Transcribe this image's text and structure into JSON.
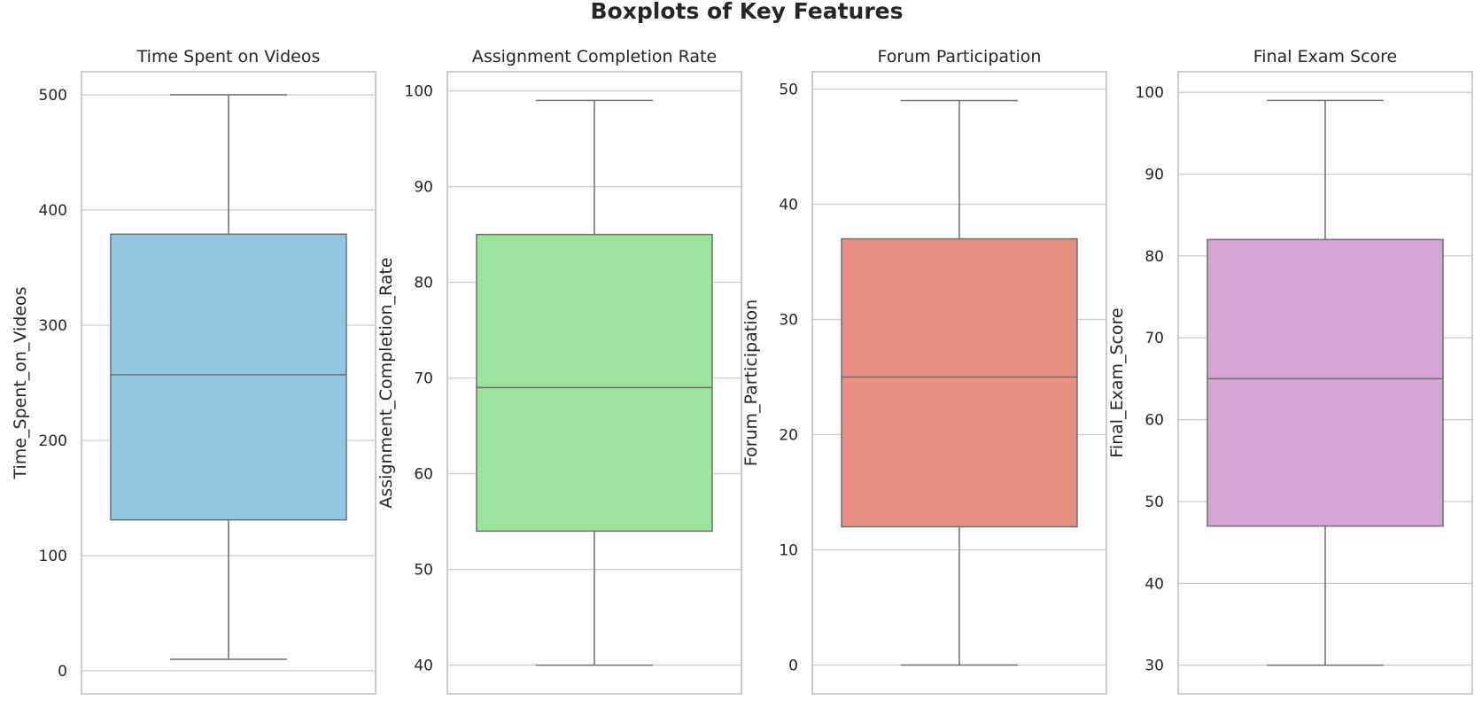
{
  "figure": {
    "title": "Boxplots of Key Features"
  },
  "colors": {
    "grid": "#cccccc",
    "spine": "#cccccc",
    "line": "#6e6e6e",
    "text": "#262626"
  },
  "chart_data": [
    {
      "type": "box",
      "title": "Time Spent on Videos",
      "ylabel": "Time_Spent_on_Videos",
      "xlabel": "",
      "ylim": [
        -20,
        520
      ],
      "yticks": [
        0,
        100,
        200,
        300,
        400,
        500
      ],
      "grid": true,
      "color": "#92c8df",
      "stats": {
        "min": 10,
        "q1": 131,
        "median": 257,
        "q3": 379,
        "max": 500
      }
    },
    {
      "type": "box",
      "title": "Assignment Completion Rate",
      "ylabel": "Assignment_Completion_Rate",
      "xlabel": "",
      "ylim": [
        37,
        102
      ],
      "yticks": [
        40,
        50,
        60,
        70,
        80,
        90,
        100
      ],
      "grid": true,
      "color": "#9ce39d",
      "stats": {
        "min": 40,
        "q1": 54,
        "median": 69,
        "q3": 85,
        "max": 99
      }
    },
    {
      "type": "box",
      "title": "Forum Participation",
      "ylabel": "Forum_Participation",
      "xlabel": "",
      "ylim": [
        -2.5,
        51.5
      ],
      "yticks": [
        0,
        10,
        20,
        30,
        40,
        50
      ],
      "grid": true,
      "color": "#e88f83",
      "stats": {
        "min": 0,
        "q1": 12,
        "median": 25,
        "q3": 37,
        "max": 49
      }
    },
    {
      "type": "box",
      "title": "Final Exam Score",
      "ylabel": "Final_Exam_Score",
      "xlabel": "",
      "ylim": [
        26.5,
        102.5
      ],
      "yticks": [
        30,
        40,
        50,
        60,
        70,
        80,
        90,
        100
      ],
      "grid": true,
      "color": "#d5a6d5",
      "stats": {
        "min": 30,
        "q1": 47,
        "median": 65,
        "q3": 82,
        "max": 99
      }
    }
  ]
}
